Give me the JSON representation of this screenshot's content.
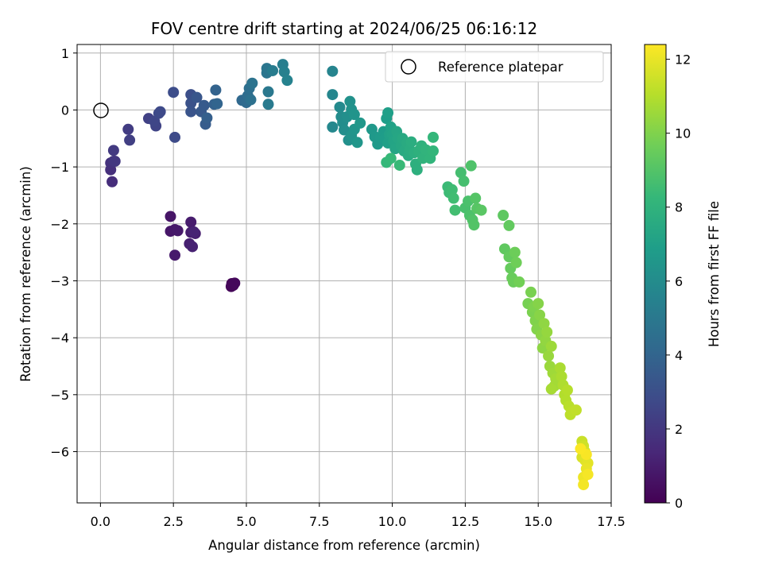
{
  "chart_data": {
    "type": "scatter",
    "title": "FOV centre drift starting at 2024/06/25 06:16:12",
    "xlabel": "Angular distance from reference (arcmin)",
    "ylabel": "Rotation from reference (arcmin)",
    "colorbar_label": "Hours from first FF file",
    "colormap": "viridis",
    "xlim": [
      -0.8,
      17.5
    ],
    "ylim": [
      -6.9,
      1.15
    ],
    "clim": [
      0,
      12.4
    ],
    "xticks": [
      0.0,
      2.5,
      5.0,
      7.5,
      10.0,
      12.5,
      15.0,
      17.5
    ],
    "xtick_labels": [
      "0.0",
      "2.5",
      "5.0",
      "7.5",
      "10.0",
      "12.5",
      "15.0",
      "17.5"
    ],
    "yticks": [
      1,
      0,
      -1,
      -2,
      -3,
      -4,
      -5,
      -6
    ],
    "ytick_labels": [
      "1",
      "0",
      "−1",
      "−2",
      "−3",
      "−4",
      "−5",
      "−6"
    ],
    "cticks": [
      0,
      2,
      4,
      6,
      8,
      10,
      12
    ],
    "ctick_labels": [
      "0",
      "2",
      "4",
      "6",
      "8",
      "10",
      "12"
    ],
    "grid": true,
    "legend": {
      "placement": "upper right",
      "entries": [
        {
          "label": "Reference platepar",
          "marker": "open-circle"
        }
      ]
    },
    "reference_point": {
      "x": 0.0,
      "y": 0.0
    },
    "points": [
      {
        "x": 4.5,
        "y": -3.05,
        "c": 0.1
      },
      {
        "x": 4.55,
        "y": -3.08,
        "c": 0.15
      },
      {
        "x": 4.48,
        "y": -3.1,
        "c": 0.2
      },
      {
        "x": 4.6,
        "y": -3.04,
        "c": 0.25
      },
      {
        "x": 2.4,
        "y": -1.87,
        "c": 0.7
      },
      {
        "x": 2.4,
        "y": -2.13,
        "c": 0.75
      },
      {
        "x": 2.55,
        "y": -2.1,
        "c": 0.8
      },
      {
        "x": 2.65,
        "y": -2.12,
        "c": 0.85
      },
      {
        "x": 2.55,
        "y": -2.55,
        "c": 0.9
      },
      {
        "x": 3.1,
        "y": -1.97,
        "c": 0.95
      },
      {
        "x": 3.1,
        "y": -2.15,
        "c": 1.0
      },
      {
        "x": 3.25,
        "y": -2.17,
        "c": 1.05
      },
      {
        "x": 3.05,
        "y": -2.35,
        "c": 1.1
      },
      {
        "x": 3.15,
        "y": -2.4,
        "c": 1.15
      },
      {
        "x": 3.2,
        "y": -2.14,
        "c": 1.2
      },
      {
        "x": 0.4,
        "y": -1.26,
        "c": 1.6
      },
      {
        "x": 0.35,
        "y": -1.05,
        "c": 1.7
      },
      {
        "x": 0.35,
        "y": -0.93,
        "c": 1.8
      },
      {
        "x": 0.45,
        "y": -0.9,
        "c": 1.9
      },
      {
        "x": 0.5,
        "y": -0.9,
        "c": 2.0
      },
      {
        "x": 0.45,
        "y": -0.71,
        "c": 2.1
      },
      {
        "x": 0.95,
        "y": -0.34,
        "c": 2.2
      },
      {
        "x": 1.0,
        "y": -0.53,
        "c": 2.3
      },
      {
        "x": 1.65,
        "y": -0.15,
        "c": 2.4
      },
      {
        "x": 1.9,
        "y": -0.28,
        "c": 2.5
      },
      {
        "x": 1.85,
        "y": -0.2,
        "c": 2.6
      },
      {
        "x": 2.0,
        "y": -0.06,
        "c": 2.7
      },
      {
        "x": 2.05,
        "y": -0.03,
        "c": 2.75
      },
      {
        "x": 2.55,
        "y": -0.48,
        "c": 2.8
      },
      {
        "x": 2.5,
        "y": 0.31,
        "c": 2.9
      },
      {
        "x": 3.1,
        "y": 0.27,
        "c": 3.0
      },
      {
        "x": 3.1,
        "y": 0.12,
        "c": 3.1
      },
      {
        "x": 3.1,
        "y": -0.03,
        "c": 3.2
      },
      {
        "x": 3.3,
        "y": 0.22,
        "c": 3.3
      },
      {
        "x": 3.45,
        "y": -0.03,
        "c": 3.4
      },
      {
        "x": 3.55,
        "y": 0.08,
        "c": 3.5
      },
      {
        "x": 3.6,
        "y": -0.25,
        "c": 3.6
      },
      {
        "x": 3.65,
        "y": -0.14,
        "c": 3.7
      },
      {
        "x": 3.9,
        "y": 0.1,
        "c": 3.8
      },
      {
        "x": 3.95,
        "y": 0.35,
        "c": 3.9
      },
      {
        "x": 4.0,
        "y": 0.11,
        "c": 4.0
      },
      {
        "x": 4.85,
        "y": 0.17,
        "c": 4.2
      },
      {
        "x": 5.0,
        "y": 0.13,
        "c": 4.3
      },
      {
        "x": 5.05,
        "y": 0.25,
        "c": 4.4
      },
      {
        "x": 5.1,
        "y": 0.38,
        "c": 4.5
      },
      {
        "x": 5.15,
        "y": 0.18,
        "c": 4.6
      },
      {
        "x": 5.2,
        "y": 0.47,
        "c": 4.7
      },
      {
        "x": 5.7,
        "y": 0.65,
        "c": 4.8
      },
      {
        "x": 5.7,
        "y": 0.73,
        "c": 4.9
      },
      {
        "x": 5.75,
        "y": 0.32,
        "c": 5.0
      },
      {
        "x": 5.75,
        "y": 0.1,
        "c": 5.1
      },
      {
        "x": 5.9,
        "y": 0.69,
        "c": 5.2
      },
      {
        "x": 6.25,
        "y": 0.8,
        "c": 5.3
      },
      {
        "x": 6.3,
        "y": 0.67,
        "c": 5.4
      },
      {
        "x": 6.4,
        "y": 0.52,
        "c": 5.5
      },
      {
        "x": 7.95,
        "y": 0.68,
        "c": 5.6
      },
      {
        "x": 7.95,
        "y": 0.27,
        "c": 5.7
      },
      {
        "x": 7.95,
        "y": -0.3,
        "c": 5.8
      },
      {
        "x": 8.2,
        "y": 0.05,
        "c": 5.9
      },
      {
        "x": 8.25,
        "y": -0.12,
        "c": 6.0
      },
      {
        "x": 8.3,
        "y": -0.22,
        "c": 6.05
      },
      {
        "x": 8.35,
        "y": -0.35,
        "c": 6.1
      },
      {
        "x": 8.45,
        "y": -0.12,
        "c": 6.15
      },
      {
        "x": 8.5,
        "y": -0.53,
        "c": 6.2
      },
      {
        "x": 8.55,
        "y": 0.15,
        "c": 6.25
      },
      {
        "x": 8.6,
        "y": 0.01,
        "c": 6.3
      },
      {
        "x": 8.6,
        "y": -0.45,
        "c": 6.35
      },
      {
        "x": 8.7,
        "y": -0.08,
        "c": 6.4
      },
      {
        "x": 8.7,
        "y": -0.34,
        "c": 6.45
      },
      {
        "x": 8.8,
        "y": -0.57,
        "c": 6.5
      },
      {
        "x": 8.9,
        "y": -0.23,
        "c": 6.55
      },
      {
        "x": 9.3,
        "y": -0.34,
        "c": 6.6
      },
      {
        "x": 9.4,
        "y": -0.47,
        "c": 6.65
      },
      {
        "x": 9.5,
        "y": -0.6,
        "c": 6.7
      },
      {
        "x": 9.6,
        "y": -0.48,
        "c": 6.75
      },
      {
        "x": 9.7,
        "y": -0.38,
        "c": 6.8
      },
      {
        "x": 9.75,
        "y": -0.5,
        "c": 6.85
      },
      {
        "x": 9.8,
        "y": -0.15,
        "c": 6.9
      },
      {
        "x": 9.85,
        "y": -0.05,
        "c": 6.95
      },
      {
        "x": 9.85,
        "y": -0.58,
        "c": 7.0
      },
      {
        "x": 9.9,
        "y": -0.43,
        "c": 7.05
      },
      {
        "x": 9.95,
        "y": -0.3,
        "c": 7.1
      },
      {
        "x": 10.0,
        "y": -0.43,
        "c": 7.15
      },
      {
        "x": 10.05,
        "y": -0.55,
        "c": 7.2
      },
      {
        "x": 10.1,
        "y": -0.68,
        "c": 7.25
      },
      {
        "x": 10.15,
        "y": -0.38,
        "c": 7.3
      },
      {
        "x": 10.2,
        "y": -0.5,
        "c": 7.35
      },
      {
        "x": 10.3,
        "y": -0.62,
        "c": 7.4
      },
      {
        "x": 10.35,
        "y": -0.5,
        "c": 7.45
      },
      {
        "x": 10.4,
        "y": -0.72,
        "c": 7.5
      },
      {
        "x": 10.5,
        "y": -0.58,
        "c": 7.55
      },
      {
        "x": 10.55,
        "y": -0.8,
        "c": 7.6
      },
      {
        "x": 10.6,
        "y": -0.7,
        "c": 7.65
      },
      {
        "x": 10.65,
        "y": -0.56,
        "c": 7.7
      },
      {
        "x": 10.75,
        "y": -0.75,
        "c": 7.75
      },
      {
        "x": 10.8,
        "y": -0.95,
        "c": 7.8
      },
      {
        "x": 10.85,
        "y": -1.05,
        "c": 7.85
      },
      {
        "x": 10.9,
        "y": -0.72,
        "c": 7.9
      },
      {
        "x": 11.0,
        "y": -0.63,
        "c": 7.95
      },
      {
        "x": 11.05,
        "y": -0.85,
        "c": 8.0
      },
      {
        "x": 11.15,
        "y": -0.7,
        "c": 8.05
      },
      {
        "x": 11.3,
        "y": -0.85,
        "c": 8.1
      },
      {
        "x": 11.4,
        "y": -0.72,
        "c": 8.15
      },
      {
        "x": 11.4,
        "y": -0.48,
        "c": 8.2
      },
      {
        "x": 9.8,
        "y": -0.92,
        "c": 8.25
      },
      {
        "x": 9.95,
        "y": -0.85,
        "c": 8.3
      },
      {
        "x": 10.25,
        "y": -0.97,
        "c": 8.35
      },
      {
        "x": 11.9,
        "y": -1.35,
        "c": 8.4
      },
      {
        "x": 11.95,
        "y": -1.45,
        "c": 8.45
      },
      {
        "x": 12.05,
        "y": -1.4,
        "c": 8.5
      },
      {
        "x": 12.1,
        "y": -1.55,
        "c": 8.55
      },
      {
        "x": 12.15,
        "y": -1.76,
        "c": 8.6
      },
      {
        "x": 12.35,
        "y": -1.1,
        "c": 8.65
      },
      {
        "x": 12.45,
        "y": -1.25,
        "c": 8.7
      },
      {
        "x": 12.5,
        "y": -1.72,
        "c": 8.75
      },
      {
        "x": 12.6,
        "y": -1.6,
        "c": 8.8
      },
      {
        "x": 12.65,
        "y": -1.85,
        "c": 8.85
      },
      {
        "x": 12.7,
        "y": -0.98,
        "c": 8.9
      },
      {
        "x": 12.75,
        "y": -1.93,
        "c": 8.95
      },
      {
        "x": 12.8,
        "y": -2.02,
        "c": 9.0
      },
      {
        "x": 12.85,
        "y": -1.55,
        "c": 9.05
      },
      {
        "x": 12.9,
        "y": -1.73,
        "c": 9.1
      },
      {
        "x": 13.05,
        "y": -1.76,
        "c": 9.15
      },
      {
        "x": 13.8,
        "y": -1.85,
        "c": 9.25
      },
      {
        "x": 13.85,
        "y": -2.44,
        "c": 9.3
      },
      {
        "x": 14.0,
        "y": -2.03,
        "c": 9.35
      },
      {
        "x": 14.0,
        "y": -2.58,
        "c": 9.4
      },
      {
        "x": 14.05,
        "y": -2.78,
        "c": 9.45
      },
      {
        "x": 14.1,
        "y": -2.95,
        "c": 9.5
      },
      {
        "x": 14.15,
        "y": -3.02,
        "c": 9.55
      },
      {
        "x": 14.2,
        "y": -2.5,
        "c": 9.6
      },
      {
        "x": 14.25,
        "y": -2.68,
        "c": 9.65
      },
      {
        "x": 14.35,
        "y": -3.02,
        "c": 9.7
      },
      {
        "x": 14.65,
        "y": -3.4,
        "c": 9.8
      },
      {
        "x": 14.75,
        "y": -3.2,
        "c": 9.85
      },
      {
        "x": 14.8,
        "y": -3.55,
        "c": 9.9
      },
      {
        "x": 14.85,
        "y": -3.46,
        "c": 9.95
      },
      {
        "x": 14.9,
        "y": -3.7,
        "c": 10.0
      },
      {
        "x": 14.95,
        "y": -3.85,
        "c": 10.05
      },
      {
        "x": 15.0,
        "y": -3.4,
        "c": 10.1
      },
      {
        "x": 15.05,
        "y": -3.6,
        "c": 10.15
      },
      {
        "x": 15.1,
        "y": -3.95,
        "c": 10.2
      },
      {
        "x": 15.15,
        "y": -4.18,
        "c": 10.25
      },
      {
        "x": 15.2,
        "y": -3.75,
        "c": 10.3
      },
      {
        "x": 15.25,
        "y": -4.05,
        "c": 10.35
      },
      {
        "x": 15.3,
        "y": -3.9,
        "c": 10.4
      },
      {
        "x": 15.35,
        "y": -4.32,
        "c": 10.45
      },
      {
        "x": 15.4,
        "y": -4.5,
        "c": 10.5
      },
      {
        "x": 15.45,
        "y": -4.15,
        "c": 10.55
      },
      {
        "x": 15.5,
        "y": -4.62,
        "c": 10.6
      },
      {
        "x": 15.55,
        "y": -4.85,
        "c": 10.65
      },
      {
        "x": 15.6,
        "y": -4.72,
        "c": 10.7
      },
      {
        "x": 15.45,
        "y": -4.9,
        "c": 10.75
      },
      {
        "x": 15.75,
        "y": -4.53,
        "c": 10.8
      },
      {
        "x": 15.8,
        "y": -4.68,
        "c": 10.85
      },
      {
        "x": 15.85,
        "y": -4.83,
        "c": 10.9
      },
      {
        "x": 15.9,
        "y": -5.0,
        "c": 10.95
      },
      {
        "x": 15.95,
        "y": -5.1,
        "c": 11.0
      },
      {
        "x": 16.0,
        "y": -4.92,
        "c": 11.05
      },
      {
        "x": 16.05,
        "y": -5.2,
        "c": 11.1
      },
      {
        "x": 16.1,
        "y": -5.35,
        "c": 11.15
      },
      {
        "x": 16.15,
        "y": -5.3,
        "c": 11.2
      },
      {
        "x": 16.3,
        "y": -5.27,
        "c": 11.25
      },
      {
        "x": 16.5,
        "y": -5.82,
        "c": 11.4
      },
      {
        "x": 16.55,
        "y": -5.9,
        "c": 11.5
      },
      {
        "x": 16.6,
        "y": -6.0,
        "c": 11.6
      },
      {
        "x": 16.5,
        "y": -6.1,
        "c": 11.7
      },
      {
        "x": 16.6,
        "y": -6.15,
        "c": 11.8
      },
      {
        "x": 16.7,
        "y": -6.2,
        "c": 11.9
      },
      {
        "x": 16.65,
        "y": -6.3,
        "c": 12.0
      },
      {
        "x": 16.55,
        "y": -6.45,
        "c": 12.1
      },
      {
        "x": 16.55,
        "y": -6.58,
        "c": 12.2
      },
      {
        "x": 16.7,
        "y": -6.4,
        "c": 12.25
      },
      {
        "x": 16.65,
        "y": -6.05,
        "c": 12.3
      },
      {
        "x": 16.45,
        "y": -5.95,
        "c": 12.35
      }
    ]
  }
}
